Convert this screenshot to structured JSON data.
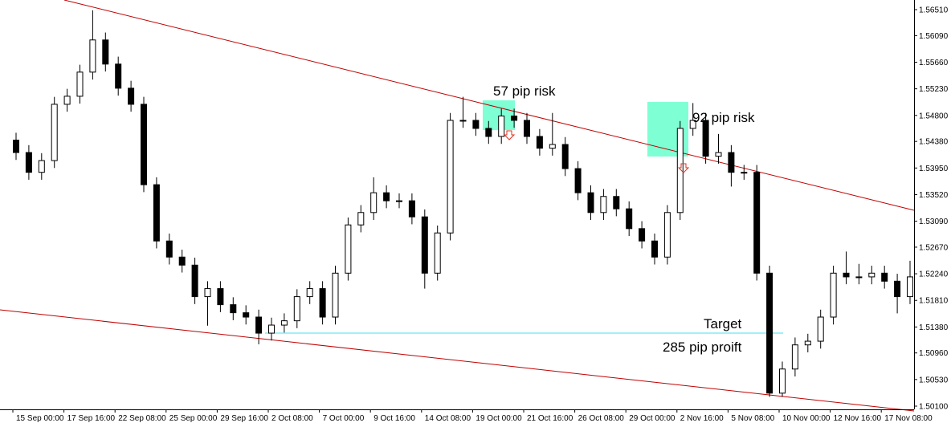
{
  "chart_data": {
    "type": "candlestick",
    "categories": [
      "15 Sep 00:00",
      null,
      null,
      null,
      "17 Sep 16:00",
      null,
      null,
      null,
      "22 Sep 08:00",
      null,
      null,
      null,
      "25 Sep 00:00",
      null,
      null,
      null,
      "29 Sep 16:00",
      null,
      null,
      null,
      "2 Oct 08:00",
      null,
      null,
      null,
      "7 Oct 00:00",
      null,
      null,
      null,
      "9 Oct 16:00",
      null,
      null,
      null,
      "14 Oct 08:00",
      null,
      null,
      null,
      "19 Oct 00:00",
      null,
      null,
      null,
      "21 Oct 16:00",
      null,
      null,
      null,
      "26 Oct 08:00",
      null,
      null,
      null,
      "29 Oct 00:00",
      null,
      null,
      null,
      "2 Nov 16:00",
      null,
      null,
      null,
      "5 Nov 08:00",
      null,
      null,
      null,
      "10 Nov 00:00",
      null,
      null,
      null,
      "12 Nov 16:00",
      null,
      null,
      null,
      "17 Nov 08:00",
      null,
      null
    ],
    "open": [
      1.544,
      1.542,
      1.5388,
      1.5407,
      1.5498,
      1.5511,
      1.555,
      1.5602,
      1.5563,
      1.5524,
      1.5498,
      1.5368,
      1.5277,
      1.5251,
      1.5238,
      1.5187,
      1.52,
      1.5174,
      1.5161,
      1.5154,
      1.5128,
      1.5141,
      1.5148,
      1.5187,
      1.52,
      1.5154,
      1.5225,
      1.5303,
      1.5323,
      1.5355,
      1.5342,
      1.5342,
      1.5316,
      1.5225,
      1.529,
      1.5472,
      1.5472,
      1.5459,
      1.5446,
      1.5479,
      1.5472,
      1.5446,
      1.5427,
      1.5433,
      1.5394,
      1.5355,
      1.5323,
      1.5349,
      1.5329,
      1.5297,
      1.5277,
      1.5251,
      1.5323,
      1.5459,
      1.5472,
      1.5414,
      1.542,
      1.5388,
      1.5388,
      1.5225,
      1.5031,
      1.507,
      1.5109,
      1.5115,
      1.5154,
      1.5225,
      1.5219,
      1.5219,
      1.5225,
      1.5212,
      1.5187
    ],
    "high": [
      1.5452,
      1.5432,
      1.5419,
      1.551,
      1.5523,
      1.5562,
      1.565,
      1.5614,
      1.5575,
      1.5536,
      1.551,
      1.538,
      1.5289,
      1.5263,
      1.525,
      1.5212,
      1.5212,
      1.5186,
      1.5173,
      1.5166,
      1.5153,
      1.516,
      1.5199,
      1.5212,
      1.5212,
      1.5237,
      1.5315,
      1.5335,
      1.538,
      1.5367,
      1.5354,
      1.5354,
      1.5328,
      1.5302,
      1.5484,
      1.551,
      1.5484,
      1.5471,
      1.5491,
      1.5491,
      1.5484,
      1.5458,
      1.5484,
      1.5445,
      1.5406,
      1.5367,
      1.5361,
      1.5361,
      1.5341,
      1.5309,
      1.5289,
      1.5335,
      1.5471,
      1.55,
      1.5484,
      1.545,
      1.5432,
      1.54,
      1.54,
      1.5237,
      1.5082,
      1.5121,
      1.5127,
      1.5166,
      1.5237,
      1.526,
      1.524,
      1.5237,
      1.5237,
      1.5224,
      1.5245
    ],
    "low": [
      1.5408,
      1.5376,
      1.5376,
      1.5395,
      1.5486,
      1.5499,
      1.5538,
      1.5551,
      1.5512,
      1.5486,
      1.5356,
      1.5265,
      1.5239,
      1.5226,
      1.5175,
      1.514,
      1.5162,
      1.5149,
      1.5142,
      1.511,
      1.5116,
      1.5129,
      1.5136,
      1.5175,
      1.5142,
      1.5142,
      1.5213,
      1.5291,
      1.5311,
      1.533,
      1.533,
      1.5304,
      1.52,
      1.5213,
      1.5278,
      1.546,
      1.5447,
      1.5434,
      1.5434,
      1.546,
      1.5434,
      1.5415,
      1.5415,
      1.5382,
      1.5343,
      1.5311,
      1.5311,
      1.5317,
      1.5285,
      1.5265,
      1.5239,
      1.5239,
      1.5311,
      1.5447,
      1.5402,
      1.5402,
      1.5365,
      1.5376,
      1.5213,
      1.5025,
      1.5025,
      1.5058,
      1.5097,
      1.5103,
      1.5142,
      1.5207,
      1.5207,
      1.5207,
      1.52,
      1.516,
      1.5175
    ],
    "close": [
      1.542,
      1.5388,
      1.5407,
      1.5498,
      1.5511,
      1.555,
      1.5602,
      1.5563,
      1.5524,
      1.5498,
      1.5368,
      1.5277,
      1.5251,
      1.5238,
      1.5187,
      1.52,
      1.5174,
      1.5161,
      1.5154,
      1.5128,
      1.5141,
      1.5148,
      1.5187,
      1.52,
      1.5154,
      1.5225,
      1.5303,
      1.5323,
      1.5355,
      1.5342,
      1.5342,
      1.5316,
      1.5225,
      1.529,
      1.5472,
      1.5472,
      1.5459,
      1.5446,
      1.5479,
      1.5472,
      1.5446,
      1.5427,
      1.5433,
      1.5394,
      1.5355,
      1.5323,
      1.5349,
      1.5329,
      1.5297,
      1.5277,
      1.5251,
      1.5323,
      1.5459,
      1.5472,
      1.5414,
      1.542,
      1.5388,
      1.5388,
      1.5225,
      1.5031,
      1.507,
      1.5109,
      1.5115,
      1.5154,
      1.5225,
      1.5219,
      1.5219,
      1.5225,
      1.5212,
      1.5187,
      1.5219
    ],
    "ylim": [
      1.50048,
      1.56666
    ],
    "yticks": [
      {
        "value": 1.5651,
        "label": "1.56510"
      },
      {
        "value": 1.5609,
        "label": "1.56090"
      },
      {
        "value": 1.5566,
        "label": "1.55660"
      },
      {
        "value": 1.5523,
        "label": "1.55230"
      },
      {
        "value": 1.548,
        "label": "1.54800"
      },
      {
        "value": 1.5438,
        "label": "1.54380"
      },
      {
        "value": 1.5395,
        "label": "1.53950"
      },
      {
        "value": 1.5352,
        "label": "1.53520"
      },
      {
        "value": 1.5309,
        "label": "1.53090"
      },
      {
        "value": 1.5267,
        "label": "1.52670"
      },
      {
        "value": 1.5224,
        "label": "1.52240"
      },
      {
        "value": 1.5181,
        "label": "1.51810"
      },
      {
        "value": 1.5138,
        "label": "1.51380"
      },
      {
        "value": 1.5096,
        "label": "1.50960"
      },
      {
        "value": 1.5053,
        "label": "1.50530"
      },
      {
        "value": 1.501,
        "label": "1.50100"
      }
    ],
    "annotations": [
      "57 pip risk",
      "92 pip risk",
      "Target",
      "285 pip proift"
    ]
  }
}
